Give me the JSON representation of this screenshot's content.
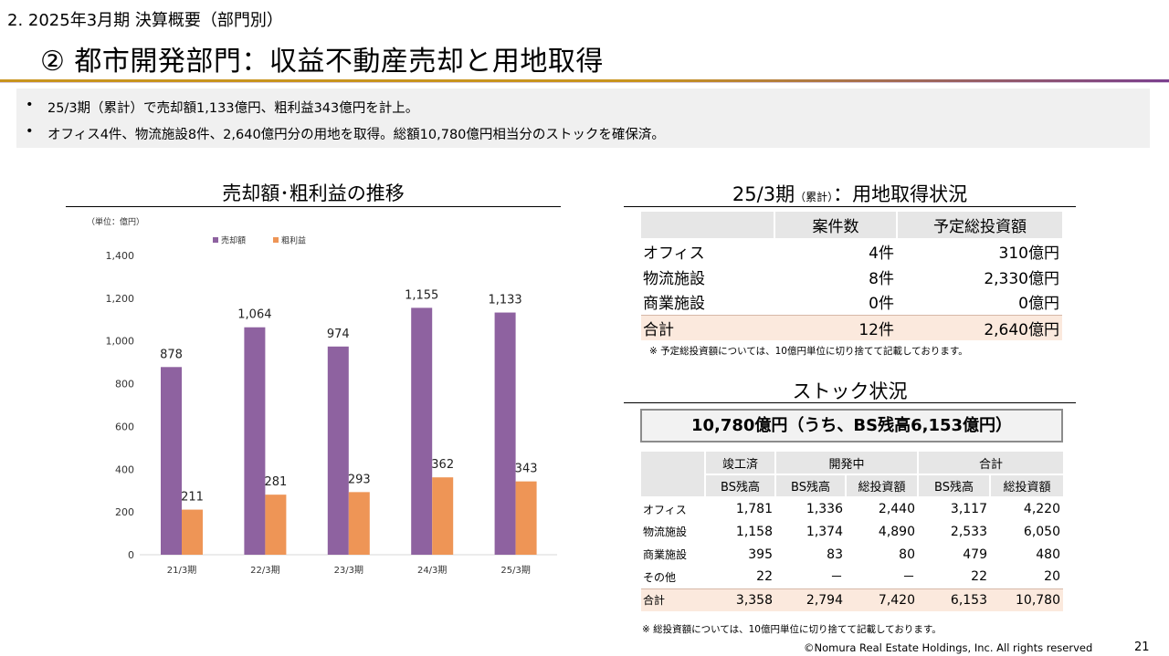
{
  "header": {
    "section": "2. 2025年3月期 決算概要（部門別）",
    "title": "② 都市開発部門：収益不動産売却と用地取得"
  },
  "summary": {
    "bullets": [
      "25/3期（累計）で売却額1,133億円、粗利益343億円を計上。",
      "オフィス4件、物流施設8件、2,640億円分の用地を取得。総額10,780億円相当分のストックを確保済。"
    ],
    "bullet_marker": "•"
  },
  "chart_section": {
    "title": "売却額･粗利益の推移"
  },
  "chart_data": {
    "type": "bar",
    "unit_label": "（単位：億円）",
    "categories": [
      "21/3期",
      "22/3期",
      "23/3期",
      "24/3期",
      "25/3期"
    ],
    "series": [
      {
        "name": "売却額",
        "values": [
          878,
          1064,
          974,
          1155,
          1133
        ],
        "labels": [
          "878",
          "1,064",
          "974",
          "1,155",
          "1,133"
        ],
        "color": "#8e62a0"
      },
      {
        "name": "粗利益",
        "values": [
          211,
          281,
          293,
          362,
          343
        ],
        "labels": [
          "211",
          "281",
          "293",
          "362",
          "343"
        ],
        "color": "#ee9556"
      }
    ],
    "ylim": [
      0,
      1400
    ],
    "yticks": [
      "0",
      "200",
      "400",
      "600",
      "800",
      "1,000",
      "1,200",
      "1,400"
    ],
    "ytick_values": [
      0,
      200,
      400,
      600,
      800,
      1000,
      1200,
      1400
    ],
    "legend": "top-center",
    "grid": false
  },
  "acquisition": {
    "title_main": "25/3期",
    "title_small": "（累計）",
    "title_suffix": "：用地取得状況",
    "headers": [
      "",
      "案件数",
      "予定総投資額"
    ],
    "rows": [
      [
        "オフィス",
        "4件",
        "310億円"
      ],
      [
        "物流施設",
        "8件",
        "2,330億円"
      ],
      [
        "商業施設",
        "0件",
        "0億円"
      ]
    ],
    "total": [
      "合計",
      "12件",
      "2,640億円"
    ],
    "note": "※ 予定総投資額については、10億円単位に切り捨てて記載しております。"
  },
  "stock": {
    "title": "ストック状況",
    "headline": "10,780億円（うち、BS残高6,153億円）",
    "group_headers": [
      "竣工済",
      "開発中",
      "合計"
    ],
    "sub_headers": [
      "BS残高",
      "BS残高",
      "総投資額",
      "BS残高",
      "総投資額"
    ],
    "rows": [
      [
        "オフィス",
        "1,781",
        "1,336",
        "2,440",
        "3,117",
        "4,220"
      ],
      [
        "物流施設",
        "1,158",
        "1,374",
        "4,890",
        "2,533",
        "6,050"
      ],
      [
        "商業施設",
        "395",
        "83",
        "80",
        "479",
        "480"
      ],
      [
        "その他",
        "22",
        "－",
        "－",
        "22",
        "20"
      ]
    ],
    "total": [
      "合計",
      "3,358",
      "2,794",
      "7,420",
      "6,153",
      "10,780"
    ],
    "note": "※ 総投資額については、10億円単位に切り捨てて記載しております。"
  },
  "footer": {
    "copyright": "©Nomura Real Estate Holdings, Inc. All rights reserved",
    "page": "21"
  },
  "colors": {
    "accent_gold": "#c8941e",
    "accent_purple": "#7b3f8e",
    "total_row": "#fbe9dd"
  }
}
